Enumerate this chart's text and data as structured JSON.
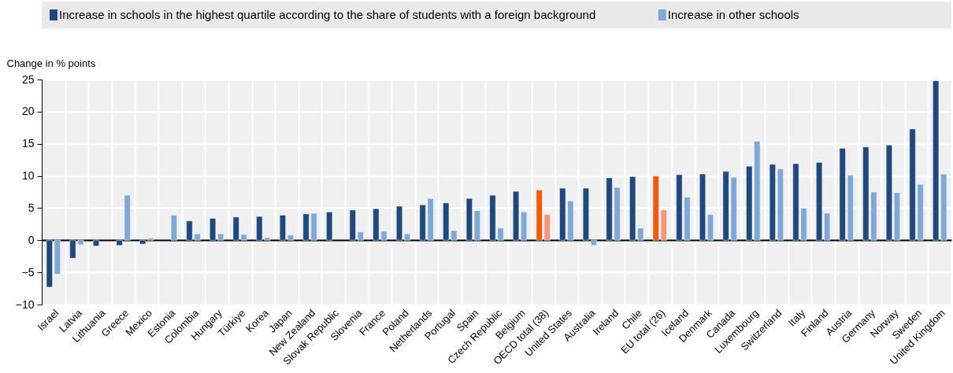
{
  "chart_data": {
    "type": "bar",
    "ylabel": "Change in % points",
    "categories": [
      "Israel",
      "Latvia",
      "Lithuania",
      "Greece",
      "Mexico",
      "Estonia",
      "Colombia",
      "Hungary",
      "Türkiye",
      "Korea",
      "Japan",
      "New Zealand",
      "Slovak Republic",
      "Slovenia",
      "France",
      "Poland",
      "Netherlands",
      "Portugal",
      "Spain",
      "Czech Republic",
      "Belgium",
      "OECD total (38)",
      "United States",
      "Australia",
      "Ireland",
      "Chile",
      "EU total (26)",
      "Iceland",
      "Denmark",
      "Canada",
      "Luxembourg",
      "Switzerland",
      "Italy",
      "Finland",
      "Austria",
      "Germany",
      "Norway",
      "Sweden",
      "United Kingdom"
    ],
    "series": [
      {
        "name": "Increase in schools in the highest quartile according to the share of students with a foreign background",
        "color": "#1f497d",
        "colors": [
          "#1f497d",
          "#1f497d",
          "#1f497d",
          "#1f497d",
          "#1f497d",
          "#1f497d",
          "#1f497d",
          "#1f497d",
          "#1f497d",
          "#1f497d",
          "#1f497d",
          "#1f497d",
          "#1f497d",
          "#1f497d",
          "#1f497d",
          "#1f497d",
          "#1f497d",
          "#1f497d",
          "#1f497d",
          "#1f497d",
          "#1f497d",
          "#f15a0a",
          "#1f497d",
          "#1f497d",
          "#1f497d",
          "#1f497d",
          "#f15a0a",
          "#1f497d",
          "#1f497d",
          "#1f497d",
          "#1f497d",
          "#1f497d",
          "#1f497d",
          "#1f497d",
          "#1f497d",
          "#1f497d",
          "#1f497d",
          "#1f497d",
          "#1f497d"
        ],
        "values": [
          -7.3,
          -2.8,
          -0.9,
          -0.8,
          -0.6,
          null,
          3.0,
          3.4,
          3.6,
          3.7,
          3.9,
          4.1,
          4.4,
          4.7,
          4.9,
          5.3,
          5.5,
          5.8,
          6.5,
          7.0,
          7.6,
          7.8,
          8.1,
          8.1,
          9.7,
          9.9,
          10.0,
          10.2,
          10.3,
          10.7,
          11.5,
          11.8,
          11.9,
          12.1,
          14.3,
          14.5,
          14.8,
          17.3,
          24.8
        ]
      },
      {
        "name": "Increase in other schools",
        "color": "#7fa8d9",
        "colors": [
          "#7fa8d9",
          "#7fa8d9",
          "#7fa8d9",
          "#7fa8d9",
          "#7fa8d9",
          "#7fa8d9",
          "#7fa8d9",
          "#7fa8d9",
          "#7fa8d9",
          "#7fa8d9",
          "#7fa8d9",
          "#7fa8d9",
          "#7fa8d9",
          "#7fa8d9",
          "#7fa8d9",
          "#7fa8d9",
          "#7fa8d9",
          "#7fa8d9",
          "#7fa8d9",
          "#7fa8d9",
          "#7fa8d9",
          "#f5967a",
          "#7fa8d9",
          "#7fa8d9",
          "#7fa8d9",
          "#7fa8d9",
          "#f5967a",
          "#7fa8d9",
          "#7fa8d9",
          "#7fa8d9",
          "#7fa8d9",
          "#7fa8d9",
          "#7fa8d9",
          "#7fa8d9",
          "#7fa8d9",
          "#7fa8d9",
          "#7fa8d9",
          "#7fa8d9",
          "#7fa8d9"
        ],
        "values": [
          -5.3,
          -0.7,
          null,
          7.0,
          0.3,
          3.9,
          1.0,
          1.0,
          0.9,
          0.4,
          0.8,
          4.2,
          null,
          1.3,
          1.4,
          1.0,
          6.5,
          1.5,
          4.6,
          1.9,
          4.4,
          4.0,
          6.1,
          -0.8,
          8.2,
          1.9,
          4.7,
          6.7,
          4.0,
          9.8,
          15.4,
          11.1,
          5.0,
          4.2,
          10.1,
          7.5,
          7.4,
          8.7,
          10.3
        ]
      }
    ],
    "ylim": [
      -10,
      25
    ],
    "yticks": [
      -10,
      -5,
      0,
      5,
      10,
      15,
      20,
      25
    ],
    "grid": true,
    "legend": "top"
  }
}
